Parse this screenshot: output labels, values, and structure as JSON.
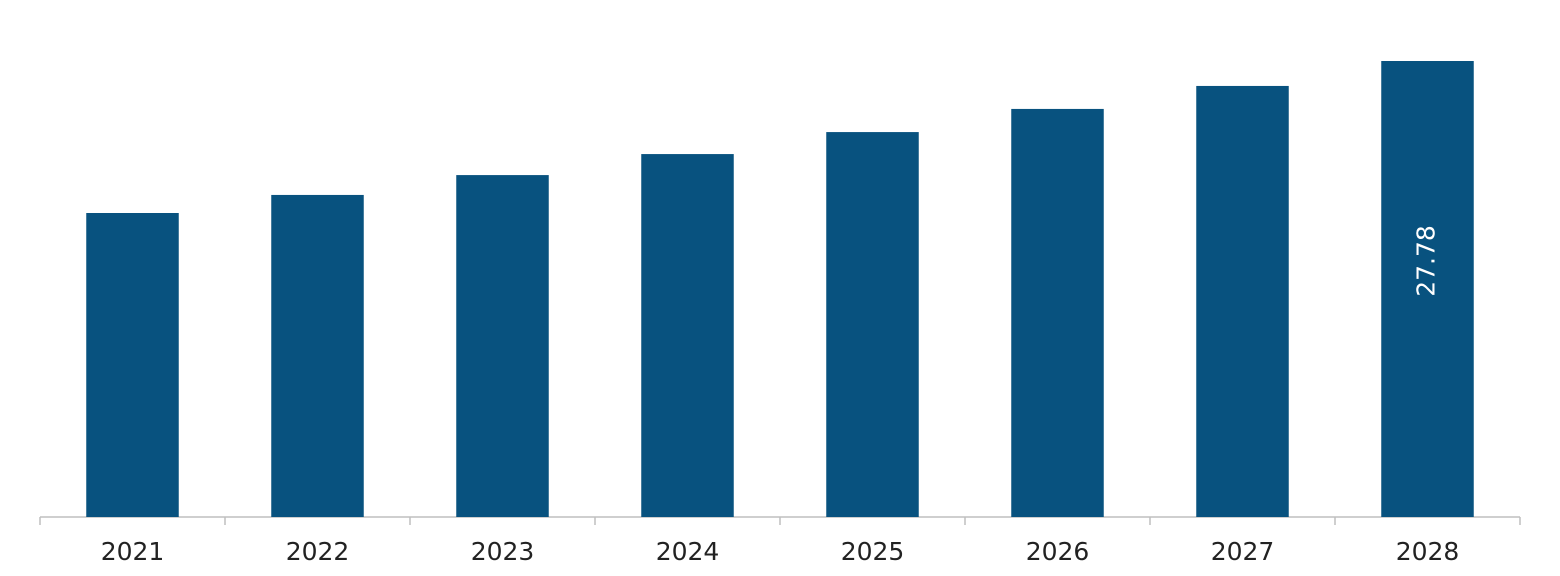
{
  "chart_data": {
    "type": "bar",
    "categories": [
      "2021",
      "2022",
      "2023",
      "2024",
      "2025",
      "2026",
      "2027",
      "2028"
    ],
    "values": [
      18.52,
      19.62,
      20.83,
      22.11,
      23.45,
      24.86,
      26.26,
      27.78
    ],
    "value_labels": [
      null,
      null,
      null,
      null,
      null,
      null,
      null,
      "27.78"
    ],
    "color": "#08527f"
  }
}
